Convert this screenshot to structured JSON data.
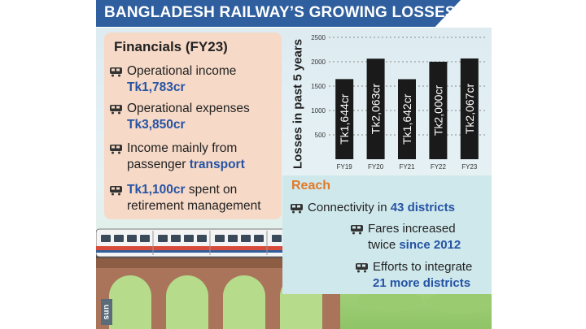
{
  "title": "BANGLADESH RAILWAY’S GROWING LOSSES",
  "financials": {
    "heading": "Financials (FY23)",
    "items": [
      {
        "line1": "Operational income",
        "line2_highlight": "Tk1,783cr"
      },
      {
        "line1": "Operational expenses",
        "line2_highlight": "Tk3,850cr"
      },
      {
        "line1": "Income mainly from",
        "line2_plain": "passenger ",
        "line2_highlight": "transport"
      },
      {
        "line1_highlight": "Tk1,100cr",
        "line1_plain": " spent on",
        "line2": "retirement management"
      }
    ]
  },
  "reach": {
    "heading": "Reach",
    "items": [
      {
        "plain": "Connectivity in ",
        "highlight": "43 districts"
      },
      {
        "line1": "Fares increased",
        "line2_plain": "twice ",
        "line2_highlight": "since 2012"
      },
      {
        "line1": "Efforts to integrate",
        "line2_highlight": "21 more districts"
      }
    ]
  },
  "logo_text": "sun",
  "colors": {
    "title_band": "#2f5f9e",
    "bar": "#1a1a1a",
    "highlight": "#2553a4",
    "reach_heading": "#e07a28",
    "financial_panel": "#f6d9c7",
    "reach_panel": "#cfe8ec"
  },
  "icons": [
    "train-icon"
  ],
  "chart_data": {
    "type": "bar",
    "title": "",
    "ylabel": "Losses in past 5 years",
    "xlabel": "",
    "categories": [
      "FY19",
      "FY20",
      "FY21",
      "FY22",
      "FY23"
    ],
    "values": [
      1644,
      2063,
      1642,
      2000,
      2067
    ],
    "data_labels": [
      "Tk1,644cr",
      "Tk2,063cr",
      "Tk1,642cr",
      "Tk2,000cr",
      "Tk2,067cr"
    ],
    "ylim": [
      0,
      2500
    ],
    "yticks": [
      0,
      500,
      1000,
      1500,
      2000,
      2500
    ],
    "grid": "dotted horizontal lines at ticks"
  }
}
